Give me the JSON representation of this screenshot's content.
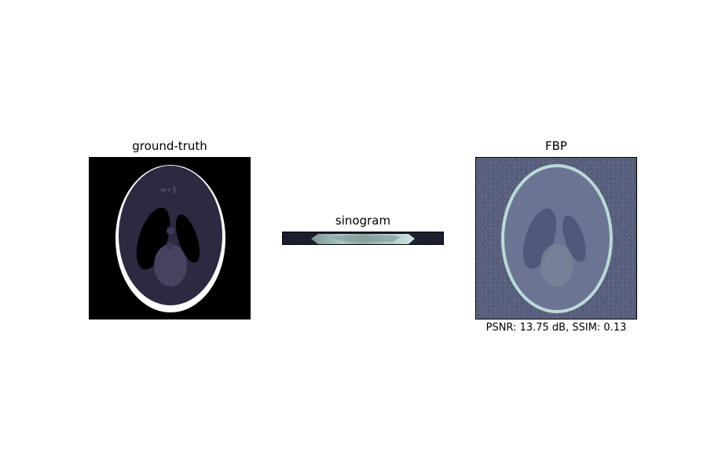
{
  "panels": [
    {
      "title": "ground-truth",
      "caption": ""
    },
    {
      "title": "sinogram",
      "caption": ""
    },
    {
      "title": "FBP",
      "caption": "PSNR: 13.75 dB, SSIM: 0.13"
    }
  ],
  "colors": {
    "background": "#ffffff",
    "phantom_black": "#000000",
    "phantom_skull": "#ffffff",
    "phantom_brain": "#2b2a40",
    "phantom_features": "#45435f",
    "fbp_base": "#5a607e",
    "fbp_ring": "#bfe2dc",
    "sinogram_bg": "#1a1b2a",
    "sinogram_band": "#a8c6c3"
  },
  "colormap": "bone"
}
